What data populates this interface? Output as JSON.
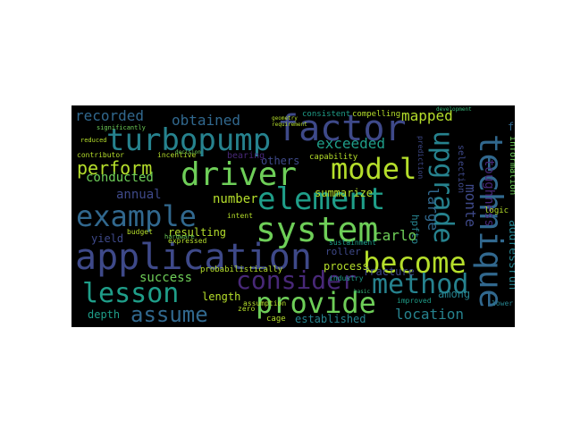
{
  "words": {
    "turbopump": "turbopump",
    "factor": "factor",
    "driver": "driver",
    "model": "model",
    "element": "element",
    "example": "example",
    "system": "system",
    "application": "application",
    "become": "become",
    "consider": "consider",
    "lesson": "lesson",
    "provide": "provide",
    "method": "method",
    "assume": "assume",
    "technique": "technique",
    "upgrade": "upgrade",
    "perform": "perform",
    "recorded": "recorded",
    "obtained": "obtained",
    "mapped": "mapped",
    "exceeded": "exceeded",
    "conducted": "conducted",
    "annual": "annual",
    "number": "number",
    "success": "success",
    "length": "length",
    "depth": "depth",
    "resulting": "resulting",
    "yield": "yield",
    "carlo": "carlo",
    "monte": "monte",
    "large": "large",
    "toughness": "toughness",
    "fracture": "fracture",
    "location": "location",
    "established": "established",
    "among": "among",
    "process": "process",
    "roller": "roller",
    "others": "others",
    "summarize": "summarize",
    "addressrun": "addressrun",
    "fuel": "fuel",
    "information": "information",
    "capability": "capability",
    "bearing": "bearing",
    "cage": "cage",
    "probabilistically": "probabilistically",
    "industry": "industry",
    "hpftp": "hpftp",
    "logic": "logic",
    "selection": "selection",
    "compelling": "compelling",
    "consistent": "consistent",
    "sustainment": "sustainment",
    "improved": "improved",
    "budget": "budget",
    "expressed": "expressed",
    "intent": "intent",
    "assumption": "assumption",
    "zero": "zero",
    "incentive": "incentive",
    "contributor": "contributor",
    "significantly": "significantly",
    "lower": "lower",
    "prediction": "prediction",
    "hardware": "hardware",
    "reduced": "reduced",
    "decision": "decision",
    "development": "development",
    "basic": "basic",
    "geometry": "geometry",
    "requirement": "requirement"
  },
  "colors": {
    "background": "#000000",
    "yellow": "#fde725",
    "lime": "#b5de2b",
    "green": "#6ece58",
    "teal_green": "#35b779",
    "teal": "#1f9e89",
    "cyan_blue": "#26828e",
    "blue": "#31688e",
    "indigo": "#3e4989",
    "purple": "#482878",
    "dark_purple": "#440154"
  }
}
